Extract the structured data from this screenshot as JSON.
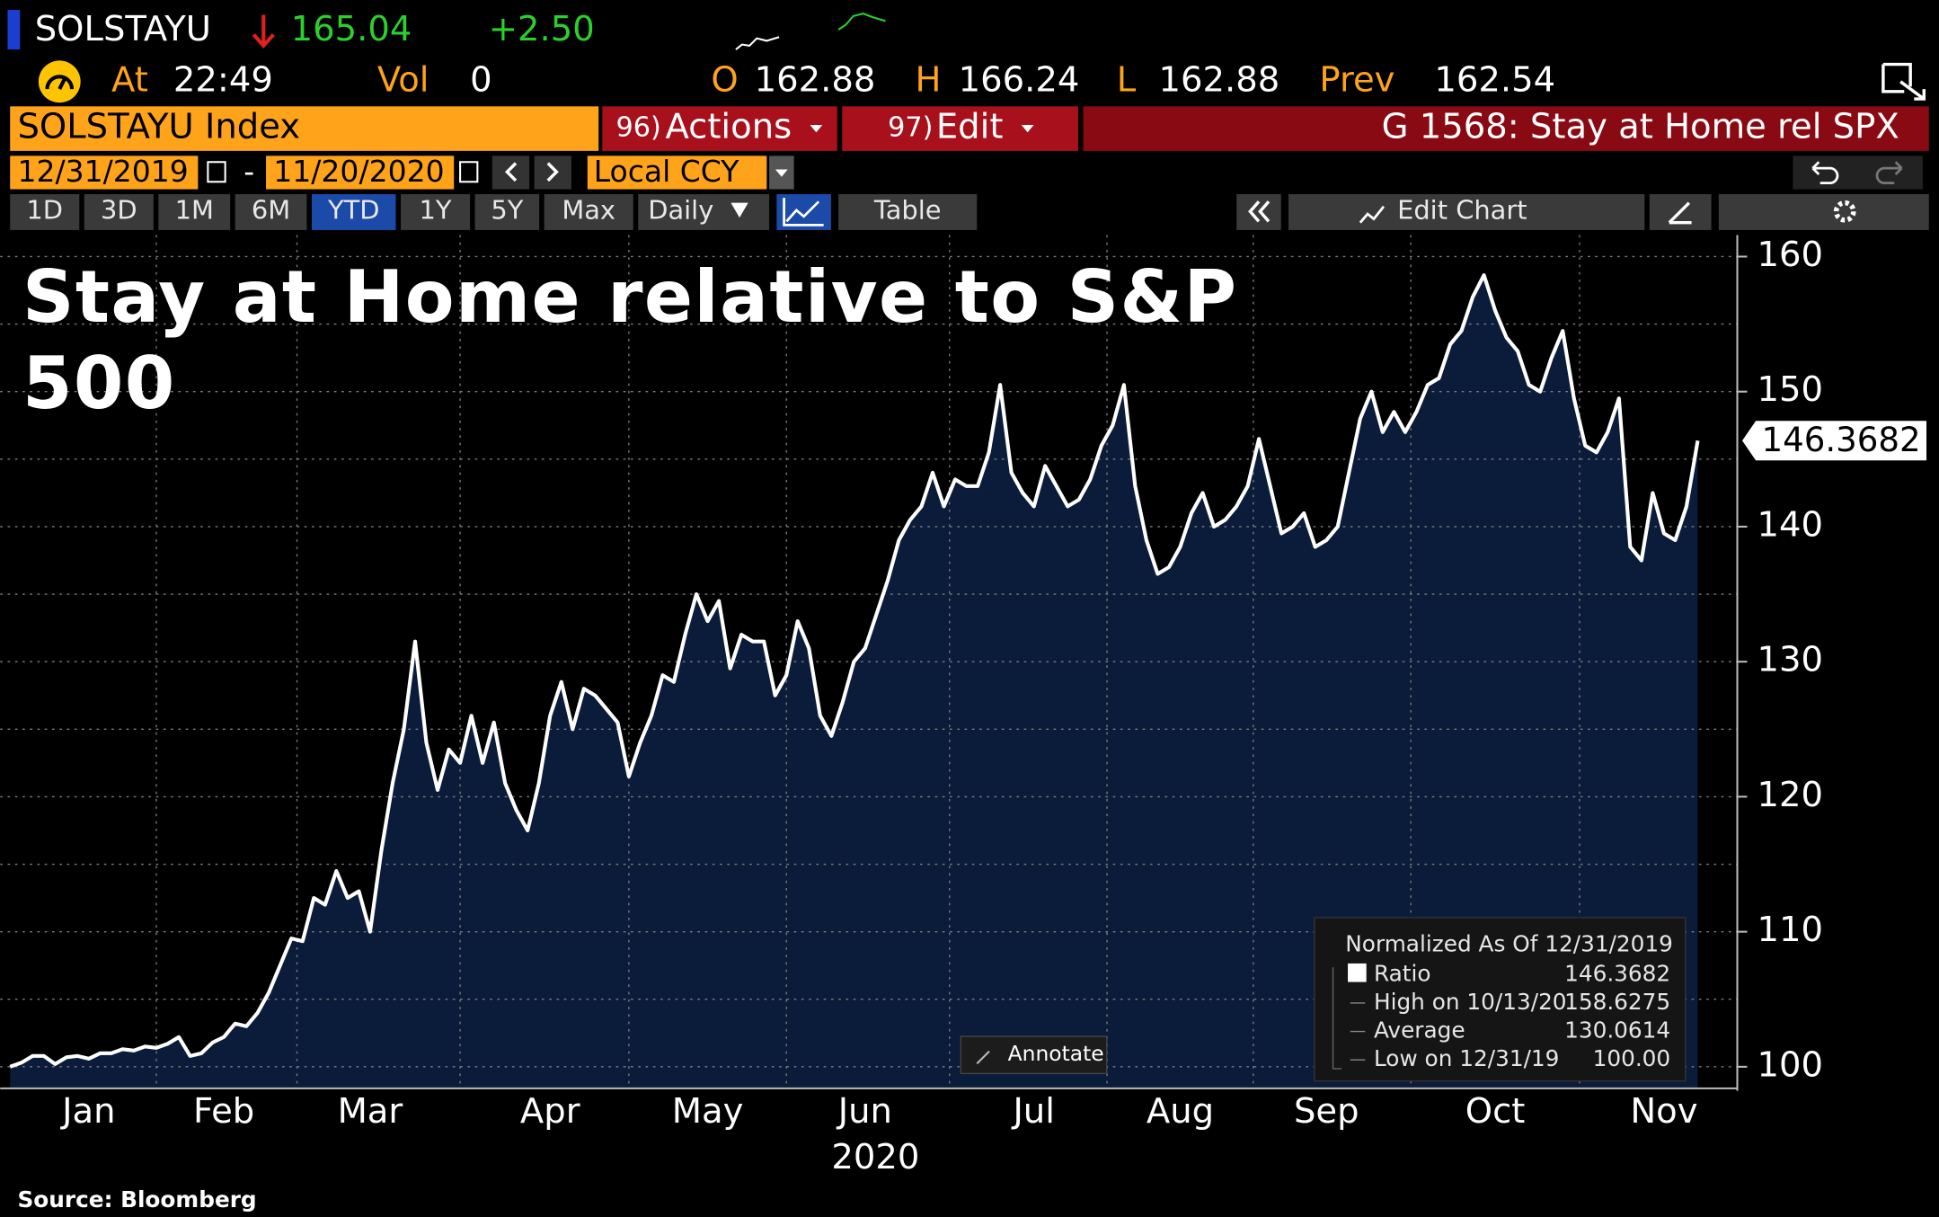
{
  "header": {
    "ticker": "SOLSTAYU",
    "price": "165.04",
    "change": "+2.50",
    "time_label": "At",
    "time": "22:49",
    "vol_label": "Vol",
    "vol": "0",
    "open_label": "O",
    "open": "162.88",
    "high_label": "H",
    "high": "166.24",
    "low_label": "L",
    "low": "162.88",
    "prev_label": "Prev",
    "prev": "162.54"
  },
  "toolbar": {
    "security": "SOLSTAYU Index",
    "actions_num": "96)",
    "actions": "Actions",
    "edit_num": "97)",
    "edit": "Edit",
    "graph_title": "G 1568: Stay at Home rel SPX",
    "start_date": "12/31/2019",
    "date_sep": "-",
    "end_date": "11/20/2020",
    "currency": "Local CCY",
    "ranges": [
      "1D",
      "3D",
      "1M",
      "6M",
      "YTD",
      "1Y",
      "5Y",
      "Max"
    ],
    "selected_range": 4,
    "frequency": "Daily",
    "table": "Table",
    "edit_chart": "Edit Chart",
    "annotate": "Annotate"
  },
  "chart_data": {
    "type": "line",
    "title": "Stay at Home relative to S&P 500",
    "xlabel": "2020",
    "categories": [
      null,
      null,
      null,
      null,
      null,
      null,
      null,
      "Jan",
      null,
      null,
      null,
      null,
      null,
      null,
      null,
      null,
      null,
      null,
      null,
      "Feb",
      null,
      null,
      null,
      null,
      null,
      null,
      null,
      null,
      null,
      null,
      null,
      null,
      "Mar",
      null,
      null,
      null,
      null,
      null,
      null,
      null,
      null,
      null,
      null,
      null,
      null,
      null,
      null,
      null,
      "Apr",
      null,
      null,
      null,
      null,
      null,
      null,
      null,
      null,
      null,
      null,
      null,
      null,
      null,
      "May",
      null,
      null,
      null,
      null,
      null,
      null,
      null,
      null,
      null,
      null,
      null,
      null,
      null,
      "Jun",
      null,
      null,
      null,
      null,
      null,
      null,
      null,
      null,
      null,
      null,
      null,
      null,
      null,
      null,
      "Jul",
      null,
      null,
      null,
      null,
      null,
      null,
      null,
      null,
      null,
      null,
      null,
      null,
      "Aug",
      null,
      null,
      null,
      null,
      null,
      null,
      null,
      null,
      null,
      null,
      null,
      null,
      "Sep",
      null,
      null,
      null,
      null,
      null,
      null,
      null,
      null,
      null,
      null,
      null,
      null,
      null,
      null,
      "Oct",
      null,
      null,
      null,
      null,
      null,
      null,
      null,
      null,
      null,
      null,
      null,
      null,
      null,
      null,
      "Nov",
      null,
      null,
      null
    ],
    "series": [
      {
        "name": "Ratio",
        "color": "#ffffff",
        "fill": "#0a1c3a",
        "values": [
          100,
          100.3,
          100.8,
          100.8,
          100.2,
          100.7,
          100.8,
          100.6,
          101,
          101,
          101.3,
          101.2,
          101.5,
          101.4,
          101.7,
          102.2,
          100.8,
          101,
          101.8,
          102.2,
          103.2,
          103,
          104,
          105.5,
          107.5,
          109.5,
          109.3,
          112.5,
          112,
          114.5,
          112.5,
          113,
          110,
          116,
          121,
          125,
          131.5,
          124,
          120.5,
          123.5,
          122.5,
          126,
          122.5,
          125.5,
          121,
          119,
          117.5,
          121,
          126,
          128.5,
          125,
          128,
          127.5,
          126.5,
          125.5,
          121.5,
          124,
          126,
          129,
          128.5,
          132,
          135,
          133,
          134.5,
          129.5,
          132,
          131.5,
          131.5,
          127.5,
          129,
          133,
          131,
          126,
          124.5,
          127,
          130,
          131,
          133.5,
          136,
          139,
          140.5,
          141.5,
          144,
          141.5,
          143.5,
          143,
          143,
          145.5,
          150.5,
          144,
          142.5,
          141.5,
          144.5,
          143,
          141.5,
          142,
          143.5,
          146,
          147.5,
          150.5,
          143,
          139,
          136.5,
          137,
          138.5,
          141,
          142.5,
          140,
          140.5,
          141.5,
          143,
          146.5,
          143,
          139.5,
          140,
          141,
          138.5,
          139,
          140,
          144,
          148,
          150,
          147,
          148.5,
          147,
          148.5,
          150.5,
          151,
          153.5,
          154.5,
          157,
          158.6275,
          156,
          154,
          153,
          150.5,
          150,
          152.5,
          154.5,
          149.5,
          146,
          145.5,
          147,
          149.5,
          138.5,
          137.5,
          142.5,
          139.5,
          139,
          141.5,
          146.3682
        ]
      }
    ],
    "ylim": [
      98.4,
      161.6
    ],
    "yticks": [
      100,
      110,
      120,
      130,
      140,
      150,
      160
    ],
    "grid": true,
    "legend": {
      "title": "Normalized As Of 12/31/2019",
      "stats": [
        {
          "label": "High on 10/13/20",
          "value": "158.6275"
        },
        {
          "label": "Average",
          "value": "130.0614"
        },
        {
          "label": "Low on 12/31/19",
          "value": "100.00"
        }
      ]
    }
  },
  "source": "Source: Bloomberg"
}
